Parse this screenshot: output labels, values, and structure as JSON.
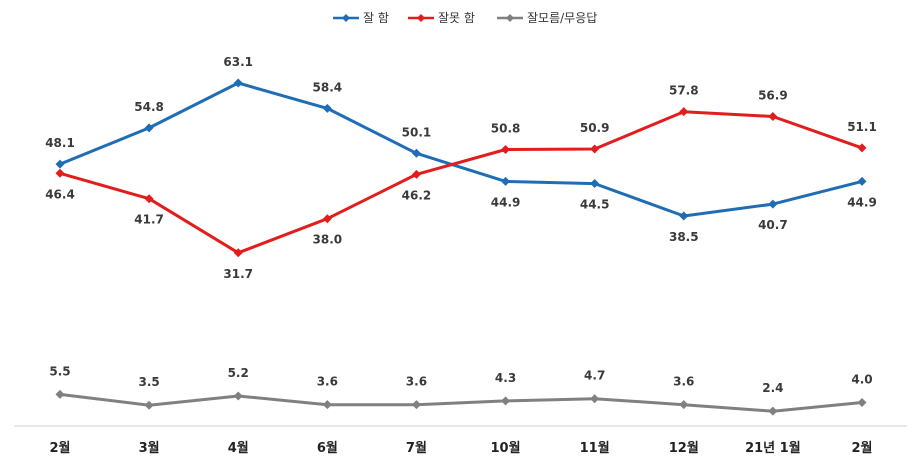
{
  "chart_data": {
    "type": "line",
    "categories": [
      "2월",
      "3월",
      "4월",
      "6월",
      "7월",
      "10월",
      "11월",
      "12월",
      "21년 1월",
      "2월"
    ],
    "series": [
      {
        "name": "잘 함",
        "color": "#1f6db5",
        "values": [
          48.1,
          54.8,
          63.1,
          58.4,
          50.1,
          44.9,
          44.5,
          38.5,
          40.7,
          44.9
        ]
      },
      {
        "name": "잘못 함",
        "color": "#e31c1c",
        "values": [
          46.4,
          41.7,
          31.7,
          38.0,
          46.2,
          50.8,
          50.9,
          57.8,
          56.9,
          51.1
        ]
      },
      {
        "name": "잘모름/무응답",
        "color": "#808080",
        "values": [
          5.5,
          3.5,
          5.2,
          3.6,
          3.6,
          4.3,
          4.7,
          3.6,
          2.4,
          4.0
        ]
      }
    ],
    "labels": [
      [
        "48.1",
        "54.8",
        "63.1",
        "58.4",
        "50.1",
        "44.9",
        "44.5",
        "38.5",
        "40.7",
        "44.9"
      ],
      [
        "46.4",
        "41.7",
        "31.7",
        "38.0",
        "46.2",
        "50.8",
        "50.9",
        "57.8",
        "56.9",
        "51.1"
      ],
      [
        "5.5",
        "3.5",
        "5.2",
        "3.6",
        "3.6",
        "4.3",
        "4.7",
        "3.6",
        "2.4",
        "4.0"
      ]
    ],
    "legend_position": "top",
    "grid": false,
    "marker": "diamond"
  }
}
